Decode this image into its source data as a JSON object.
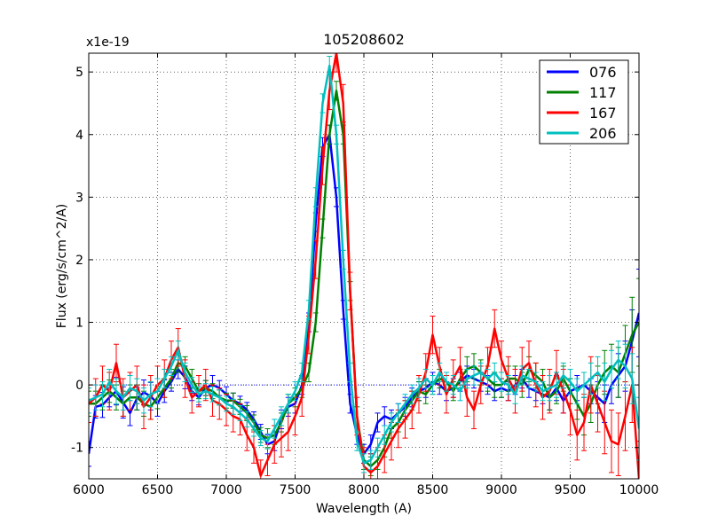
{
  "chart_data": {
    "type": "line",
    "title": "105208602",
    "xlabel": "Wavelength (A)",
    "ylabel": "Flux (erg/s/cm^2/A)",
    "y_offset_label": "x1e-19",
    "xlim": [
      6000,
      10000
    ],
    "ylim": [
      -1.5,
      5.3
    ],
    "xticks": [
      6000,
      6500,
      7000,
      7500,
      8000,
      8500,
      9000,
      9500,
      10000
    ],
    "yticks": [
      -1,
      0,
      1,
      2,
      3,
      4,
      5
    ],
    "grid": true,
    "legend_position": "top-right",
    "zero_line": 0,
    "x_step": 50,
    "series": [
      {
        "name": "076",
        "color": "#0000ff",
        "values": [
          -1.1,
          -0.35,
          -0.32,
          -0.2,
          -0.1,
          -0.28,
          -0.45,
          -0.22,
          -0.12,
          -0.18,
          -0.3,
          -0.1,
          0.05,
          0.25,
          0.12,
          -0.1,
          -0.2,
          -0.05,
          0.0,
          -0.05,
          -0.15,
          -0.25,
          -0.3,
          -0.4,
          -0.55,
          -0.75,
          -0.95,
          -0.9,
          -0.55,
          -0.35,
          -0.3,
          0.0,
          1.0,
          2.6,
          3.8,
          4.0,
          3.0,
          1.2,
          -0.3,
          -0.8,
          -1.1,
          -0.95,
          -0.6,
          -0.5,
          -0.55,
          -0.45,
          -0.35,
          -0.2,
          -0.1,
          -0.05,
          0.05,
          0.0,
          -0.1,
          -0.05,
          0.05,
          0.15,
          0.1,
          0.05,
          0.0,
          -0.1,
          -0.05,
          -0.1,
          0.0,
          0.1,
          -0.05,
          -0.1,
          -0.15,
          -0.2,
          -0.05,
          -0.25,
          -0.1,
          -0.05,
          0.0,
          -0.1,
          -0.2,
          -0.3,
          0.0,
          0.15,
          0.3,
          0.7,
          1.15
        ],
        "errors": [
          0.2,
          0.18,
          0.2,
          0.15,
          0.22,
          0.25,
          0.2,
          0.18,
          0.2,
          0.22,
          0.2,
          0.18,
          0.15,
          0.15,
          0.18,
          0.15,
          0.12,
          0.12,
          0.15,
          0.12,
          0.12,
          0.12,
          0.12,
          0.12,
          0.12,
          0.12,
          0.15,
          0.15,
          0.15,
          0.15,
          0.15,
          0.15,
          0.15,
          0.15,
          0.15,
          0.15,
          0.15,
          0.15,
          0.15,
          0.15,
          0.15,
          0.15,
          0.15,
          0.15,
          0.15,
          0.15,
          0.15,
          0.15,
          0.15,
          0.15,
          0.15,
          0.15,
          0.15,
          0.15,
          0.15,
          0.15,
          0.15,
          0.15,
          0.15,
          0.15,
          0.15,
          0.15,
          0.15,
          0.15,
          0.15,
          0.15,
          0.15,
          0.2,
          0.2,
          0.2,
          0.2,
          0.2,
          0.2,
          0.2,
          0.25,
          0.3,
          0.3,
          0.35,
          0.4,
          0.5,
          0.7
        ]
      },
      {
        "name": "117",
        "color": "#008000",
        "values": [
          -0.3,
          -0.3,
          -0.2,
          -0.1,
          -0.2,
          -0.3,
          -0.2,
          -0.2,
          -0.3,
          -0.35,
          -0.2,
          -0.05,
          0.1,
          0.35,
          0.3,
          0.1,
          -0.1,
          -0.05,
          -0.1,
          -0.2,
          -0.25,
          -0.25,
          -0.35,
          -0.45,
          -0.6,
          -0.8,
          -0.85,
          -0.8,
          -0.6,
          -0.3,
          -0.2,
          -0.05,
          0.2,
          1.0,
          2.5,
          4.0,
          4.7,
          4.0,
          1.5,
          -0.5,
          -1.2,
          -1.3,
          -1.2,
          -1.0,
          -0.7,
          -0.6,
          -0.4,
          -0.25,
          -0.1,
          -0.15,
          0.0,
          0.1,
          0.05,
          -0.1,
          0.1,
          0.25,
          0.3,
          0.2,
          0.1,
          0.0,
          0.0,
          0.1,
          0.1,
          0.0,
          0.25,
          0.15,
          0.05,
          -0.2,
          -0.1,
          0.1,
          -0.1,
          -0.3,
          -0.5,
          -0.3,
          0.0,
          0.2,
          0.3,
          0.2,
          0.5,
          0.8,
          1.0
        ],
        "errors": [
          0.2,
          0.2,
          0.2,
          0.18,
          0.2,
          0.2,
          0.2,
          0.2,
          0.2,
          0.2,
          0.18,
          0.15,
          0.15,
          0.15,
          0.15,
          0.15,
          0.12,
          0.12,
          0.12,
          0.12,
          0.12,
          0.12,
          0.12,
          0.12,
          0.12,
          0.12,
          0.15,
          0.15,
          0.15,
          0.15,
          0.15,
          0.15,
          0.15,
          0.15,
          0.15,
          0.15,
          0.15,
          0.15,
          0.15,
          0.15,
          0.15,
          0.15,
          0.15,
          0.15,
          0.15,
          0.15,
          0.15,
          0.15,
          0.15,
          0.15,
          0.15,
          0.15,
          0.15,
          0.15,
          0.15,
          0.2,
          0.2,
          0.2,
          0.2,
          0.2,
          0.2,
          0.2,
          0.2,
          0.2,
          0.2,
          0.2,
          0.2,
          0.2,
          0.2,
          0.2,
          0.2,
          0.25,
          0.3,
          0.3,
          0.3,
          0.35,
          0.35,
          0.4,
          0.45,
          0.6,
          0.7
        ]
      },
      {
        "name": "167",
        "color": "#ff0000",
        "values": [
          -0.3,
          -0.2,
          0.0,
          -0.1,
          0.35,
          -0.2,
          -0.1,
          0.0,
          -0.35,
          -0.2,
          0.0,
          0.1,
          0.4,
          0.6,
          0.1,
          -0.2,
          -0.1,
          0.0,
          -0.25,
          -0.3,
          -0.4,
          -0.5,
          -0.55,
          -0.8,
          -1.0,
          -1.45,
          -1.2,
          -0.95,
          -0.85,
          -0.75,
          -0.5,
          -0.2,
          0.8,
          2.0,
          3.5,
          4.7,
          5.3,
          4.5,
          1.5,
          -0.5,
          -1.3,
          -1.4,
          -1.3,
          -1.1,
          -0.9,
          -0.7,
          -0.55,
          -0.4,
          -0.15,
          0.2,
          0.8,
          0.3,
          -0.15,
          0.1,
          0.3,
          -0.2,
          -0.4,
          0.0,
          0.3,
          0.9,
          0.4,
          0.1,
          -0.1,
          0.25,
          0.35,
          0.0,
          -0.2,
          -0.1,
          0.2,
          -0.1,
          -0.4,
          -0.8,
          -0.6,
          0.0,
          -0.3,
          -0.6,
          -0.9,
          -0.95,
          -0.5,
          0.0,
          -1.5
        ],
        "errors": [
          0.3,
          0.3,
          0.3,
          0.3,
          0.3,
          0.3,
          0.3,
          0.3,
          0.35,
          0.35,
          0.3,
          0.3,
          0.3,
          0.3,
          0.3,
          0.25,
          0.25,
          0.25,
          0.25,
          0.25,
          0.25,
          0.25,
          0.25,
          0.25,
          0.25,
          0.25,
          0.25,
          0.3,
          0.3,
          0.3,
          0.3,
          0.3,
          0.3,
          0.3,
          0.3,
          0.3,
          0.3,
          0.3,
          0.3,
          0.3,
          0.3,
          0.3,
          0.3,
          0.3,
          0.3,
          0.3,
          0.3,
          0.3,
          0.3,
          0.3,
          0.3,
          0.3,
          0.3,
          0.3,
          0.3,
          0.3,
          0.3,
          0.3,
          0.3,
          0.3,
          0.3,
          0.35,
          0.35,
          0.35,
          0.35,
          0.35,
          0.35,
          0.35,
          0.35,
          0.35,
          0.4,
          0.4,
          0.45,
          0.45,
          0.45,
          0.5,
          0.5,
          0.5,
          0.55,
          0.6,
          0.6
        ]
      },
      {
        "name": "206",
        "color": "#00bfbf",
        "values": [
          -0.25,
          -0.2,
          -0.15,
          0.05,
          -0.1,
          -0.2,
          -0.05,
          -0.1,
          -0.25,
          -0.15,
          -0.1,
          0.1,
          0.3,
          0.55,
          0.2,
          0.0,
          -0.15,
          -0.1,
          -0.15,
          -0.2,
          -0.3,
          -0.35,
          -0.45,
          -0.55,
          -0.7,
          -0.85,
          -0.9,
          -0.7,
          -0.5,
          -0.3,
          -0.1,
          0.2,
          1.2,
          3.0,
          4.5,
          5.1,
          4.0,
          2.0,
          0.2,
          -0.9,
          -1.25,
          -1.2,
          -1.0,
          -0.8,
          -0.6,
          -0.45,
          -0.3,
          -0.15,
          -0.05,
          0.1,
          0.0,
          0.2,
          0.05,
          0.0,
          -0.1,
          0.1,
          0.15,
          0.2,
          0.1,
          0.2,
          0.05,
          0.0,
          -0.15,
          0.15,
          0.1,
          0.05,
          -0.1,
          -0.05,
          0.0,
          0.15,
          0.05,
          -0.1,
          0.0,
          0.1,
          0.2,
          0.05,
          0.25,
          0.4,
          0.3,
          0.1,
          -0.7
        ],
        "errors": [
          0.2,
          0.2,
          0.2,
          0.2,
          0.2,
          0.2,
          0.2,
          0.2,
          0.2,
          0.2,
          0.2,
          0.15,
          0.15,
          0.15,
          0.15,
          0.12,
          0.12,
          0.12,
          0.12,
          0.12,
          0.12,
          0.12,
          0.12,
          0.12,
          0.12,
          0.12,
          0.12,
          0.15,
          0.15,
          0.15,
          0.15,
          0.15,
          0.15,
          0.15,
          0.15,
          0.15,
          0.15,
          0.15,
          0.15,
          0.15,
          0.15,
          0.15,
          0.15,
          0.15,
          0.15,
          0.15,
          0.15,
          0.15,
          0.15,
          0.15,
          0.15,
          0.15,
          0.15,
          0.15,
          0.15,
          0.15,
          0.15,
          0.15,
          0.15,
          0.15,
          0.15,
          0.15,
          0.15,
          0.15,
          0.15,
          0.15,
          0.15,
          0.2,
          0.2,
          0.2,
          0.2,
          0.2,
          0.2,
          0.25,
          0.25,
          0.3,
          0.3,
          0.3,
          0.35,
          0.4,
          0.5
        ]
      }
    ]
  }
}
